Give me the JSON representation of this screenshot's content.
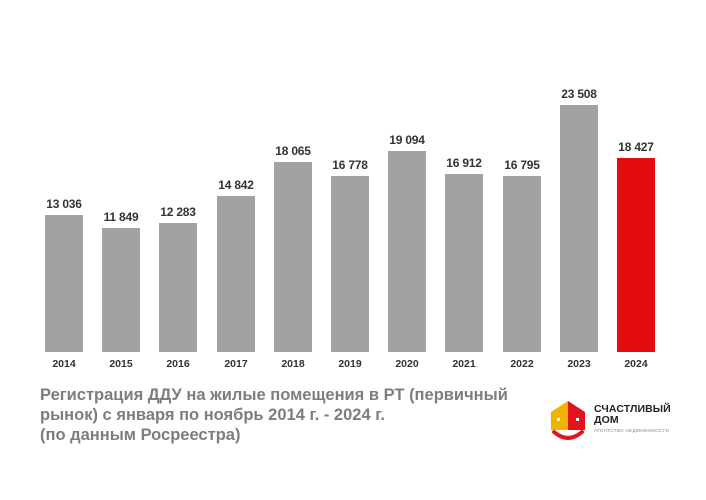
{
  "chart_data": {
    "type": "bar",
    "title": "Регистрация ДДУ на жилые помещения в РТ (первичный рынок) с января по ноябрь 2014 г. - 2024 г. (по данным Росреестра)",
    "xlabel": "",
    "ylabel": "",
    "categories": [
      "2014",
      "2015",
      "2016",
      "2017",
      "2018",
      "2019",
      "2020",
      "2021",
      "2022",
      "2023",
      "2024"
    ],
    "values": [
      13036,
      11849,
      12283,
      14842,
      18065,
      16778,
      19094,
      16912,
      16795,
      23508,
      18427
    ],
    "value_labels": [
      "13 036",
      "11 849",
      "12 283",
      "14 842",
      "18 065",
      "16 778",
      "19 094",
      "16 912",
      "16 795",
      "23 508",
      "18 427"
    ],
    "highlight_index": 10,
    "colors": {
      "default": "#a2a2a2",
      "highlight": "#e30d0d"
    },
    "grid": false,
    "legend": null,
    "ylim": [
      0,
      23508
    ]
  },
  "caption": {
    "lines": [
      "Регистрация ДДУ на жилые помещения в РТ (первичный",
      "рынок) с января по ноябрь 2014 г. - 2024 г.",
      "(по данным Росреестра)"
    ]
  },
  "logo": {
    "name_line1": "СЧАСТЛИВЫЙ",
    "name_line2": "ДОМ",
    "subtitle": "АГЕНТСТВО НЕДВИЖИМОСТИ",
    "colors": {
      "yellow": "#f0b400",
      "red": "#e3131b"
    }
  }
}
